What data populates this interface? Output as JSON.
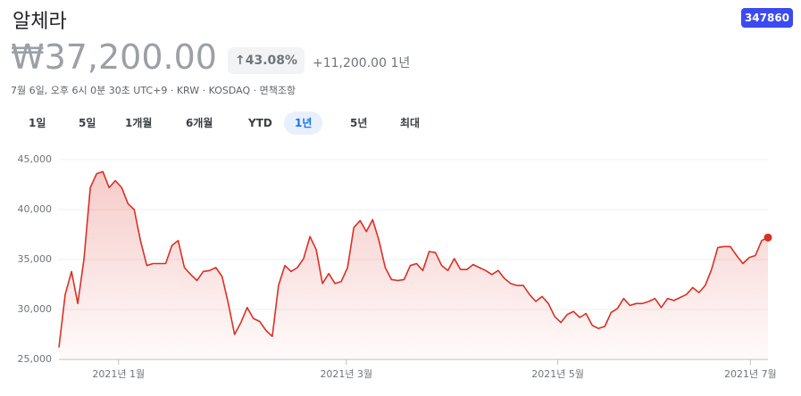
{
  "header": {
    "title": "알체라",
    "ticker": "347860",
    "price": "₩37,200.00",
    "change_pct": "43.08%",
    "change": "+11,200.00",
    "period": "1년",
    "meta": "7월 6일, 오후 6시 0분 30초 UTC+9 · KRW · KOSDAQ · 면책조항"
  },
  "tabs": {
    "items": [
      "1일",
      "5일",
      "1개월",
      "6개월",
      "YTD",
      "1년",
      "5년",
      "최대"
    ],
    "selected": 5
  },
  "chart_data": {
    "type": "line",
    "color": "#d93025",
    "grid": true,
    "xlim": [
      0,
      113
    ],
    "xticks": [
      {
        "value": 9.5,
        "label": "2021년 1월"
      },
      {
        "value": 45.8,
        "label": "2021년 3월"
      },
      {
        "value": 79.5,
        "label": "2021년 5월"
      },
      {
        "value": 110.2,
        "label": "2021년 7월"
      }
    ],
    "ylim": [
      25000,
      45000
    ],
    "yticks": [
      {
        "value": 45000,
        "label": "45,000"
      },
      {
        "value": 40000,
        "label": "40,000"
      },
      {
        "value": 35000,
        "label": "35,000"
      },
      {
        "value": 30000,
        "label": "30,000"
      },
      {
        "value": 25000,
        "label": "25,000"
      }
    ],
    "values": [
      26200,
      31500,
      33800,
      30600,
      35100,
      42200,
      43600,
      43800,
      42200,
      42900,
      42200,
      40600,
      40000,
      36900,
      34400,
      34600,
      34600,
      34600,
      36400,
      36900,
      34200,
      33500,
      32900,
      33800,
      33900,
      34200,
      33300,
      30600,
      27500,
      28700,
      30200,
      29100,
      28800,
      27900,
      27300,
      32400,
      34400,
      33800,
      34200,
      35100,
      37300,
      36000,
      32600,
      33600,
      32600,
      32800,
      34200,
      38200,
      38900,
      37800,
      39000,
      36900,
      34200,
      33000,
      32900,
      33000,
      34400,
      34600,
      33900,
      35800,
      35700,
      34400,
      33900,
      35100,
      34000,
      34000,
      34500,
      34200,
      33900,
      33500,
      33900,
      33100,
      32600,
      32400,
      32400,
      31500,
      30800,
      31300,
      30600,
      29300,
      28700,
      29500,
      29800,
      29200,
      29600,
      28400,
      28100,
      28300,
      29700,
      30100,
      31100,
      30400,
      30600,
      30600,
      30800,
      31100,
      30200,
      31100,
      30900,
      31200,
      31500,
      32200,
      31700,
      32400,
      34000,
      36200,
      36300,
      36300,
      35400,
      34600,
      35200,
      35400,
      36900,
      37200
    ]
  }
}
